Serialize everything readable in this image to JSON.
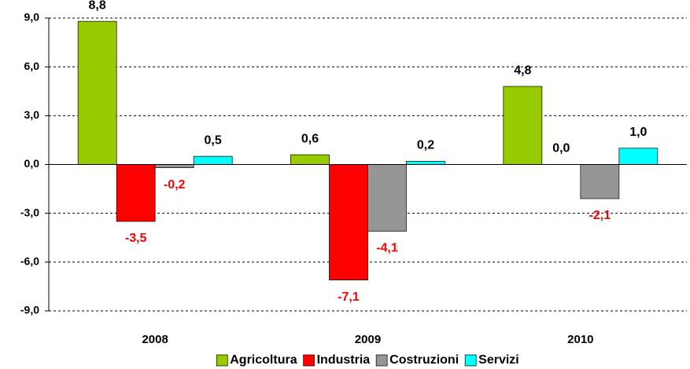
{
  "chart_data": {
    "type": "bar",
    "categories": [
      "2008",
      "2009",
      "2010"
    ],
    "series": [
      {
        "name": "Agricoltura",
        "color": "#99cc00",
        "values": [
          8.8,
          0.6,
          4.8
        ],
        "value_labels": [
          "8,8",
          "0,6",
          "4,8"
        ]
      },
      {
        "name": "Industria",
        "color": "#ff0000",
        "values": [
          -3.5,
          -7.1,
          0.0
        ],
        "value_labels": [
          "-3,5",
          "-7,1",
          "0,0"
        ]
      },
      {
        "name": "Costruzioni",
        "color": "#969696",
        "values": [
          -0.2,
          -4.1,
          -2.1
        ],
        "value_labels": [
          "-0,2",
          "-4,1",
          "-2,1"
        ]
      },
      {
        "name": "Servizi",
        "color": "#00ffff",
        "values": [
          0.5,
          0.2,
          1.0
        ],
        "value_labels": [
          "0,5",
          "0,2",
          "1,0"
        ]
      }
    ],
    "ylim": [
      -9,
      9
    ],
    "yticks": [
      {
        "value": -9,
        "label": "-9,0"
      },
      {
        "value": -6,
        "label": "-6,0"
      },
      {
        "value": -3,
        "label": "-3,0"
      },
      {
        "value": 0,
        "label": "0,0"
      },
      {
        "value": 3,
        "label": "3,0"
      },
      {
        "value": 6,
        "label": "6,0"
      },
      {
        "value": 9,
        "label": "9,0"
      }
    ],
    "grid": true,
    "legend": "bottom",
    "negative_label_color": "#ff0000"
  }
}
